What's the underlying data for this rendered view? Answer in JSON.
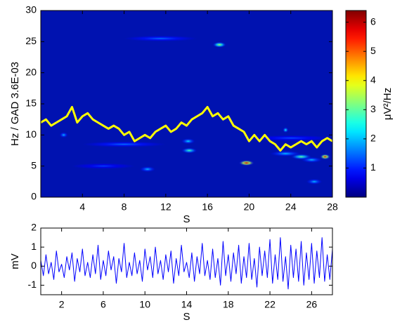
{
  "chart_data": [
    {
      "type": "heatmap",
      "xlabel": "S",
      "ylabel": "Hz / GAD 3.6E-03",
      "xlim": [
        0,
        28
      ],
      "ylim": [
        0,
        30
      ],
      "xticks": [
        4,
        8,
        12,
        16,
        20,
        24,
        28
      ],
      "yticks": [
        0,
        5,
        10,
        15,
        20,
        25,
        30
      ],
      "clim": [
        0,
        6.4
      ],
      "cticks": [
        1,
        2,
        3,
        4,
        5,
        6
      ],
      "clabel": "μV²/Hz",
      "spots": [
        {
          "x0": 1.8,
          "x1": 2.6,
          "y": 10,
          "value": 2
        },
        {
          "x0": 8,
          "x1": 15,
          "y": 25.5,
          "value": 1.5
        },
        {
          "x0": 16.5,
          "x1": 17.8,
          "y": 24.5,
          "value": 3.5
        },
        {
          "x0": 13.5,
          "x1": 14.8,
          "y": 9,
          "value": 2.2
        },
        {
          "x0": 13.5,
          "x1": 15,
          "y": 7.5,
          "value": 2.8
        },
        {
          "x0": 9.5,
          "x1": 11,
          "y": 4.5,
          "value": 2
        },
        {
          "x0": 19,
          "x1": 20.5,
          "y": 5.5,
          "value": 5.8
        },
        {
          "x0": 23.3,
          "x1": 23.7,
          "y": 10.8,
          "value": 2.5
        },
        {
          "x0": 22,
          "x1": 25,
          "y": 7,
          "value": 2
        },
        {
          "x0": 24,
          "x1": 26,
          "y": 6.5,
          "value": 3
        },
        {
          "x0": 26.8,
          "x1": 27.8,
          "y": 6.5,
          "value": 5.5
        },
        {
          "x0": 25.5,
          "x1": 27,
          "y": 2.5,
          "value": 2
        },
        {
          "x0": 4,
          "x1": 12,
          "y": 8.5,
          "value": 1.5
        },
        {
          "x0": 3,
          "x1": 9,
          "y": 5,
          "value": 1.2
        },
        {
          "x0": 20,
          "x1": 28,
          "y": 9.5,
          "value": 1.3
        },
        {
          "x0": 25,
          "x1": 27,
          "y": 6,
          "value": 2
        }
      ],
      "series": [
        {
          "color": "#ffff00",
          "x": [
            0,
            0.5,
            1,
            1.5,
            2,
            2.5,
            3,
            3.5,
            4,
            4.5,
            5,
            5.5,
            6,
            6.5,
            7,
            7.5,
            8,
            8.5,
            9,
            9.5,
            10,
            10.5,
            11,
            11.5,
            12,
            12.5,
            13,
            13.5,
            14,
            14.5,
            15,
            15.5,
            16,
            16.5,
            17,
            17.5,
            18,
            18.5,
            19,
            19.5,
            20,
            20.5,
            21,
            21.5,
            22,
            22.5,
            23,
            23.5,
            24,
            24.5,
            25,
            25.5,
            26,
            26.5,
            27,
            27.5,
            28
          ],
          "values": [
            12,
            12.5,
            11.5,
            12,
            12.5,
            13,
            14.5,
            12,
            13,
            13.5,
            12.5,
            12,
            11.5,
            11,
            11.5,
            11,
            10,
            10.5,
            9,
            9.5,
            10,
            9.5,
            10.5,
            11,
            11.5,
            10.5,
            11,
            12,
            11.5,
            12.5,
            13,
            13.5,
            14.5,
            13,
            13.5,
            12.5,
            13,
            11.5,
            11,
            10.5,
            9,
            10,
            9,
            10,
            9,
            8.5,
            7.5,
            8.5,
            8,
            8.5,
            9,
            8.5,
            9,
            8,
            9,
            9.5,
            9
          ]
        }
      ]
    },
    {
      "type": "line",
      "xlabel": "S",
      "ylabel": "mV",
      "xlim": [
        0,
        28
      ],
      "ylim": [
        -1.5,
        2
      ],
      "xticks": [
        2,
        6,
        10,
        14,
        18,
        22,
        26
      ],
      "yticks": [
        -1,
        0,
        1,
        2
      ],
      "x": [
        0,
        0.25,
        0.5,
        0.75,
        1,
        1.25,
        1.5,
        1.75,
        2,
        2.25,
        2.5,
        2.75,
        3,
        3.25,
        3.5,
        3.75,
        4,
        4.25,
        4.5,
        4.75,
        5,
        5.25,
        5.5,
        5.75,
        6,
        6.25,
        6.5,
        6.75,
        7,
        7.25,
        7.5,
        7.75,
        8,
        8.25,
        8.5,
        8.75,
        9,
        9.25,
        9.5,
        9.75,
        10,
        10.25,
        10.5,
        10.75,
        11,
        11.25,
        11.5,
        11.75,
        12,
        12.25,
        12.5,
        12.75,
        13,
        13.25,
        13.5,
        13.75,
        14,
        14.25,
        14.5,
        14.75,
        15,
        15.25,
        15.5,
        15.75,
        16,
        16.25,
        16.5,
        16.75,
        17,
        17.25,
        17.5,
        17.75,
        18,
        18.25,
        18.5,
        18.75,
        19,
        19.25,
        19.5,
        19.75,
        20,
        20.25,
        20.5,
        20.75,
        21,
        21.25,
        21.5,
        21.75,
        22,
        22.25,
        22.5,
        22.75,
        23,
        23.25,
        23.5,
        23.75,
        24,
        24.25,
        24.5,
        24.75,
        25,
        25.25,
        25.5,
        25.75,
        26,
        26.25,
        26.5,
        26.75,
        27,
        27.25,
        27.5,
        27.75,
        28
      ],
      "series": [
        {
          "color": "#0000ff",
          "values": [
            0.3,
            -0.5,
            0.6,
            -0.4,
            0.2,
            -0.7,
            0.8,
            -0.3,
            0.1,
            -0.6,
            0.5,
            -0.2,
            0.7,
            -0.8,
            0.4,
            -0.3,
            0.9,
            -0.5,
            0.2,
            -0.6,
            0.6,
            -0.4,
            1.1,
            -0.7,
            0.3,
            -0.5,
            0.8,
            -0.2,
            0.5,
            -0.9,
            0.4,
            -0.3,
            1.2,
            -0.6,
            0.2,
            -0.5,
            0.7,
            -0.4,
            0.3,
            -0.8,
            0.9,
            -0.2,
            0.5,
            -0.6,
            1.0,
            -0.4,
            0.3,
            -0.7,
            0.6,
            -0.3,
            0.8,
            -0.9,
            0.4,
            -0.5,
            1.1,
            -0.3,
            0.2,
            -0.6,
            0.7,
            -0.8,
            0.5,
            -0.4,
            1.2,
            -0.5,
            0.3,
            -0.7,
            0.9,
            -0.6,
            0.4,
            -1.0,
            1.3,
            -0.5,
            0.6,
            -0.8,
            0.7,
            -0.4,
            1.1,
            -0.9,
            0.5,
            -0.6,
            1.2,
            -0.7,
            0.4,
            -1.1,
            1.0,
            -0.5,
            0.8,
            -0.6,
            1.4,
            -0.9,
            0.6,
            -0.7,
            1.5,
            -0.8,
            0.5,
            -1.2,
            1.1,
            -0.6,
            0.9,
            -0.8,
            1.3,
            -1.0,
            0.7,
            -0.7,
            1.2,
            -0.9,
            0.8,
            -0.6,
            1.5,
            -0.8,
            0.6,
            -0.7,
            0.9
          ]
        }
      ]
    }
  ]
}
